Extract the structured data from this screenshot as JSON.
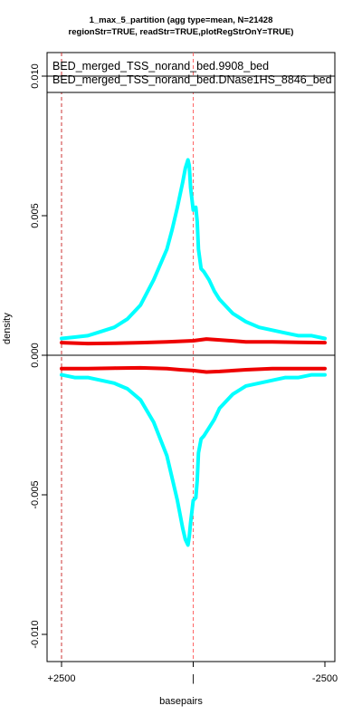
{
  "chart_data": {
    "type": "line",
    "title": "1_max_5_partition (agg type=mean, N=21428",
    "subtitle": "regionStr=TRUE, readStr=TRUE,plotRegStrOnY=TRUE)",
    "xlabel": "basepairs",
    "ylabel": "density",
    "xlim": [
      2500,
      -2500
    ],
    "ylim": [
      -0.011,
      0.011
    ],
    "x_ticks": [
      {
        "value": 2500,
        "label": "+2500"
      },
      {
        "value": 0,
        "label": "|"
      },
      {
        "value": -2500,
        "label": "-2500"
      }
    ],
    "y_ticks": [
      {
        "value": 0.01,
        "label": "0.010"
      },
      {
        "value": 0.005,
        "label": "0.005"
      },
      {
        "value": 0.0,
        "label": "0.000"
      },
      {
        "value": -0.005,
        "label": "-0.005"
      },
      {
        "value": -0.01,
        "label": "-0.010"
      }
    ],
    "reference_lines": {
      "horizontal": [
        0
      ],
      "vertical_dashed": [
        2500,
        0
      ]
    },
    "legend": {
      "position": "top",
      "entries": [
        "BED_merged_TSS_norand_bed.9908_bed",
        "BED_merged_TSS_norand_bed.DNase1HS_8846_bed"
      ]
    },
    "series": [
      {
        "color": "#00ffff",
        "x": [
          2500,
          2250,
          2000,
          1750,
          1500,
          1250,
          1000,
          750,
          500,
          400,
          300,
          200,
          150,
          100,
          75,
          50,
          0,
          -50,
          -75,
          -100,
          -150,
          -200,
          -300,
          -400,
          -500,
          -750,
          -1000,
          -1250,
          -1500,
          -1750,
          -2000,
          -2250,
          -2500
        ],
        "values": [
          0.0006,
          0.00065,
          0.0007,
          0.00085,
          0.001,
          0.0013,
          0.0018,
          0.0027,
          0.0038,
          0.0045,
          0.0053,
          0.0062,
          0.0067,
          0.007,
          0.0068,
          0.006,
          0.0052,
          0.0053,
          0.0048,
          0.0038,
          0.0031,
          0.003,
          0.0027,
          0.0023,
          0.002,
          0.0015,
          0.0012,
          0.001,
          0.0009,
          0.0008,
          0.0007,
          0.0007,
          0.0006
        ]
      },
      {
        "color": "#00ffff",
        "x": [
          2500,
          2250,
          2000,
          1750,
          1500,
          1250,
          1000,
          750,
          500,
          400,
          300,
          200,
          150,
          100,
          75,
          50,
          0,
          -50,
          -75,
          -100,
          -150,
          -200,
          -300,
          -400,
          -500,
          -750,
          -1000,
          -1250,
          -1500,
          -1750,
          -2000,
          -2250,
          -2500
        ],
        "values": [
          -0.0007,
          -0.0008,
          -0.0008,
          -0.0009,
          -0.001,
          -0.0012,
          -0.0016,
          -0.0024,
          -0.0036,
          -0.0044,
          -0.0052,
          -0.0062,
          -0.0066,
          -0.0068,
          -0.0065,
          -0.006,
          -0.0052,
          -0.0051,
          -0.0045,
          -0.0035,
          -0.003,
          -0.0029,
          -0.0026,
          -0.0023,
          -0.0019,
          -0.0014,
          -0.0011,
          -0.001,
          -0.0009,
          -0.0008,
          -0.0008,
          -0.0007,
          -0.0007
        ]
      },
      {
        "color": "#ee0000",
        "x": [
          2500,
          2000,
          1500,
          1000,
          500,
          250,
          0,
          -250,
          -500,
          -1000,
          -1500,
          -2000,
          -2500
        ],
        "values": [
          0.00045,
          0.00042,
          0.00043,
          0.00045,
          0.00048,
          0.0005,
          0.00052,
          0.00058,
          0.00055,
          0.00048,
          0.00048,
          0.00046,
          0.00045
        ]
      },
      {
        "color": "#ee0000",
        "x": [
          2500,
          2000,
          1500,
          1000,
          500,
          250,
          0,
          -250,
          -500,
          -1000,
          -1500,
          -2000,
          -2500
        ],
        "values": [
          -0.00048,
          -0.00048,
          -0.00046,
          -0.00045,
          -0.00048,
          -0.00052,
          -0.00055,
          -0.0006,
          -0.00058,
          -0.00052,
          -0.00048,
          -0.00048,
          -0.00048
        ]
      }
    ]
  }
}
